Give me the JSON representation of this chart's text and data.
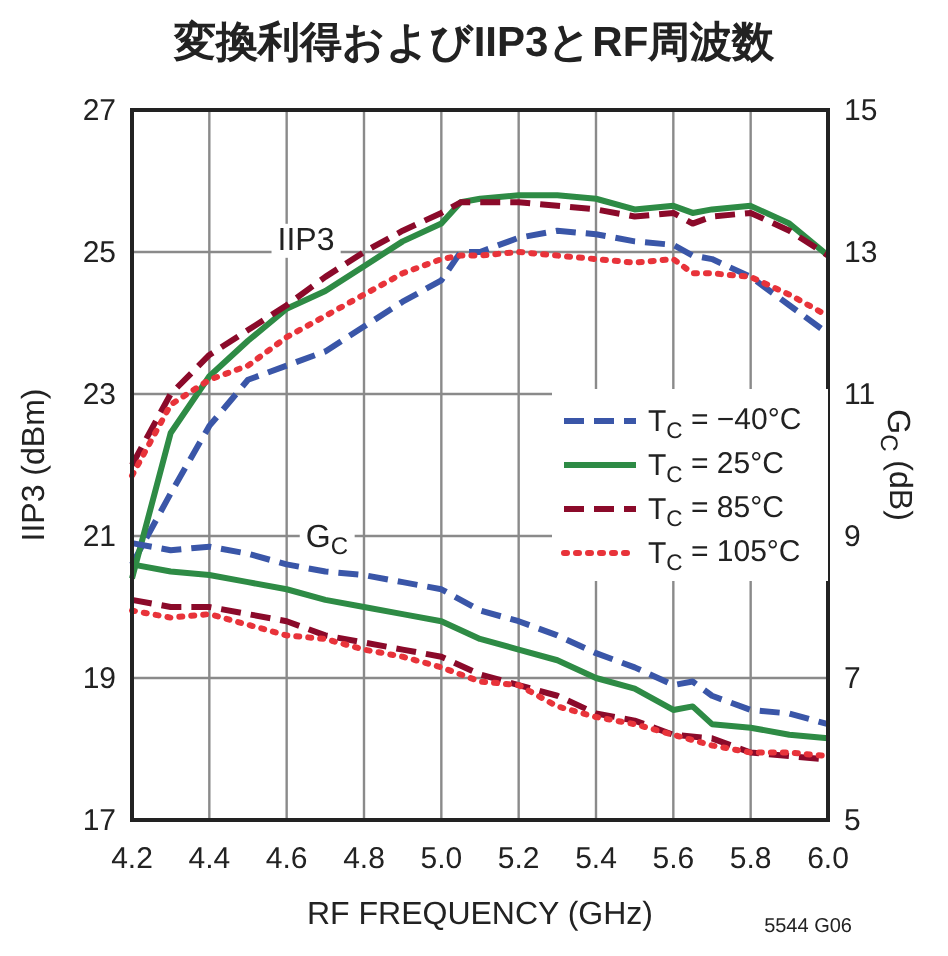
{
  "chart_data": {
    "type": "line",
    "title": "変換利得およびIIP3とRF周波数",
    "xlabel": "RF FREQUENCY (GHz)",
    "ylabel": "IIP3 (dBm)",
    "y2label": "G$_{C}$ (dB)",
    "x": [
      4.2,
      4.3,
      4.4,
      4.5,
      4.6,
      4.7,
      4.8,
      4.9,
      5.0,
      5.05,
      5.1,
      5.2,
      5.3,
      5.4,
      5.5,
      5.6,
      5.65,
      5.7,
      5.8,
      5.9,
      6.0
    ],
    "series": [
      {
        "name": "T$_{C}$ = −40°C",
        "color": "#3a56a8",
        "line_style": "dashed",
        "values": [
          20.6,
          21.6,
          22.55,
          23.2,
          23.4,
          23.6,
          23.95,
          24.3,
          24.6,
          25.0,
          25.0,
          25.2,
          25.3,
          25.25,
          25.15,
          25.1,
          24.95,
          24.9,
          24.65,
          24.25,
          23.85
        ]
      },
      {
        "name": "T$_{C}$ = 25°C",
        "color": "#2e8b45",
        "line_style": "solid",
        "values": [
          20.4,
          22.45,
          23.25,
          23.75,
          24.2,
          24.45,
          24.8,
          25.15,
          25.4,
          25.7,
          25.75,
          25.8,
          25.8,
          25.75,
          25.6,
          25.65,
          25.55,
          25.6,
          25.65,
          25.4,
          24.95
        ]
      },
      {
        "name": "T$_{C}$ = 85°C",
        "color": "#8b0a2a",
        "line_style": "dashed",
        "values": [
          22.0,
          23.0,
          23.55,
          23.9,
          24.25,
          24.65,
          25.0,
          25.3,
          25.55,
          25.7,
          25.7,
          25.7,
          25.65,
          25.6,
          25.5,
          25.55,
          25.4,
          25.5,
          25.55,
          25.3,
          24.95
        ]
      },
      {
        "name": "T$_{C}$ = 105°C",
        "color": "#e8333a",
        "line_style": "dotted",
        "values": [
          21.85,
          22.85,
          23.2,
          23.4,
          23.8,
          24.1,
          24.4,
          24.7,
          24.9,
          24.95,
          24.95,
          25.0,
          24.95,
          24.9,
          24.85,
          24.9,
          24.7,
          24.7,
          24.65,
          24.4,
          24.1
        ]
      },
      {
        "axis": "y2",
        "color": "#3a56a8",
        "line_style": "dashed",
        "x": [
          4.2,
          4.3,
          4.4,
          4.5,
          4.6,
          4.7,
          4.8,
          4.9,
          5.0,
          5.1,
          5.2,
          5.3,
          5.4,
          5.5,
          5.6,
          5.65,
          5.7,
          5.8,
          5.9,
          6.0
        ],
        "values": [
          8.9,
          8.8,
          8.85,
          8.75,
          8.6,
          8.5,
          8.45,
          8.35,
          8.25,
          7.95,
          7.8,
          7.6,
          7.35,
          7.15,
          6.9,
          6.95,
          6.75,
          6.55,
          6.5,
          6.35
        ]
      },
      {
        "axis": "y2",
        "color": "#2e8b45",
        "line_style": "solid",
        "x": [
          4.2,
          4.3,
          4.4,
          4.5,
          4.6,
          4.7,
          4.8,
          4.9,
          5.0,
          5.1,
          5.2,
          5.3,
          5.4,
          5.5,
          5.6,
          5.65,
          5.7,
          5.8,
          5.9,
          6.0
        ],
        "values": [
          8.6,
          8.5,
          8.45,
          8.35,
          8.25,
          8.1,
          8.0,
          7.9,
          7.8,
          7.55,
          7.4,
          7.25,
          7.0,
          6.85,
          6.55,
          6.6,
          6.35,
          6.3,
          6.2,
          6.15
        ]
      },
      {
        "axis": "y2",
        "color": "#8b0a2a",
        "line_style": "dashed",
        "x": [
          4.2,
          4.3,
          4.4,
          4.5,
          4.6,
          4.7,
          4.8,
          4.9,
          5.0,
          5.1,
          5.2,
          5.3,
          5.4,
          5.5,
          5.6,
          5.7,
          5.8,
          5.9,
          6.0
        ],
        "values": [
          8.1,
          8.0,
          8.0,
          7.9,
          7.8,
          7.6,
          7.5,
          7.4,
          7.3,
          7.05,
          6.9,
          6.75,
          6.5,
          6.4,
          6.2,
          6.15,
          5.95,
          5.9,
          5.85
        ]
      },
      {
        "axis": "y2",
        "color": "#e8333a",
        "line_style": "dotted",
        "x": [
          4.2,
          4.3,
          4.4,
          4.5,
          4.6,
          4.7,
          4.8,
          4.9,
          5.0,
          5.1,
          5.2,
          5.3,
          5.4,
          5.5,
          5.6,
          5.7,
          5.8,
          5.9,
          6.0
        ],
        "values": [
          7.95,
          7.85,
          7.9,
          7.75,
          7.6,
          7.55,
          7.4,
          7.3,
          7.15,
          6.95,
          6.9,
          6.6,
          6.45,
          6.35,
          6.2,
          6.05,
          5.95,
          5.95,
          5.9
        ]
      }
    ],
    "xlim": [
      4.2,
      6.0
    ],
    "xticks": [
      {
        "value": 4.2,
        "label": "4.2"
      },
      {
        "value": 4.4,
        "label": "4.4"
      },
      {
        "value": 4.6,
        "label": "4.6"
      },
      {
        "value": 4.8,
        "label": "4.8"
      },
      {
        "value": 5.0,
        "label": "5.0"
      },
      {
        "value": 5.2,
        "label": "5.2"
      },
      {
        "value": 5.4,
        "label": "5.4"
      },
      {
        "value": 5.6,
        "label": "5.6"
      },
      {
        "value": 5.8,
        "label": "5.8"
      },
      {
        "value": 6.0,
        "label": "6.0"
      }
    ],
    "ylim": [
      17,
      27
    ],
    "yticks": [
      17,
      19,
      21,
      23,
      25,
      27
    ],
    "y2lim": [
      5,
      15
    ],
    "y2ticks": [
      5,
      7,
      9,
      11,
      13,
      15
    ],
    "grid": true,
    "legend": "right",
    "marker": "none",
    "annotations": [
      {
        "text": "IIP3",
        "x": 4.65,
        "y": 25.2
      },
      "G$_{C}$",
      "5544 G06"
    ]
  }
}
